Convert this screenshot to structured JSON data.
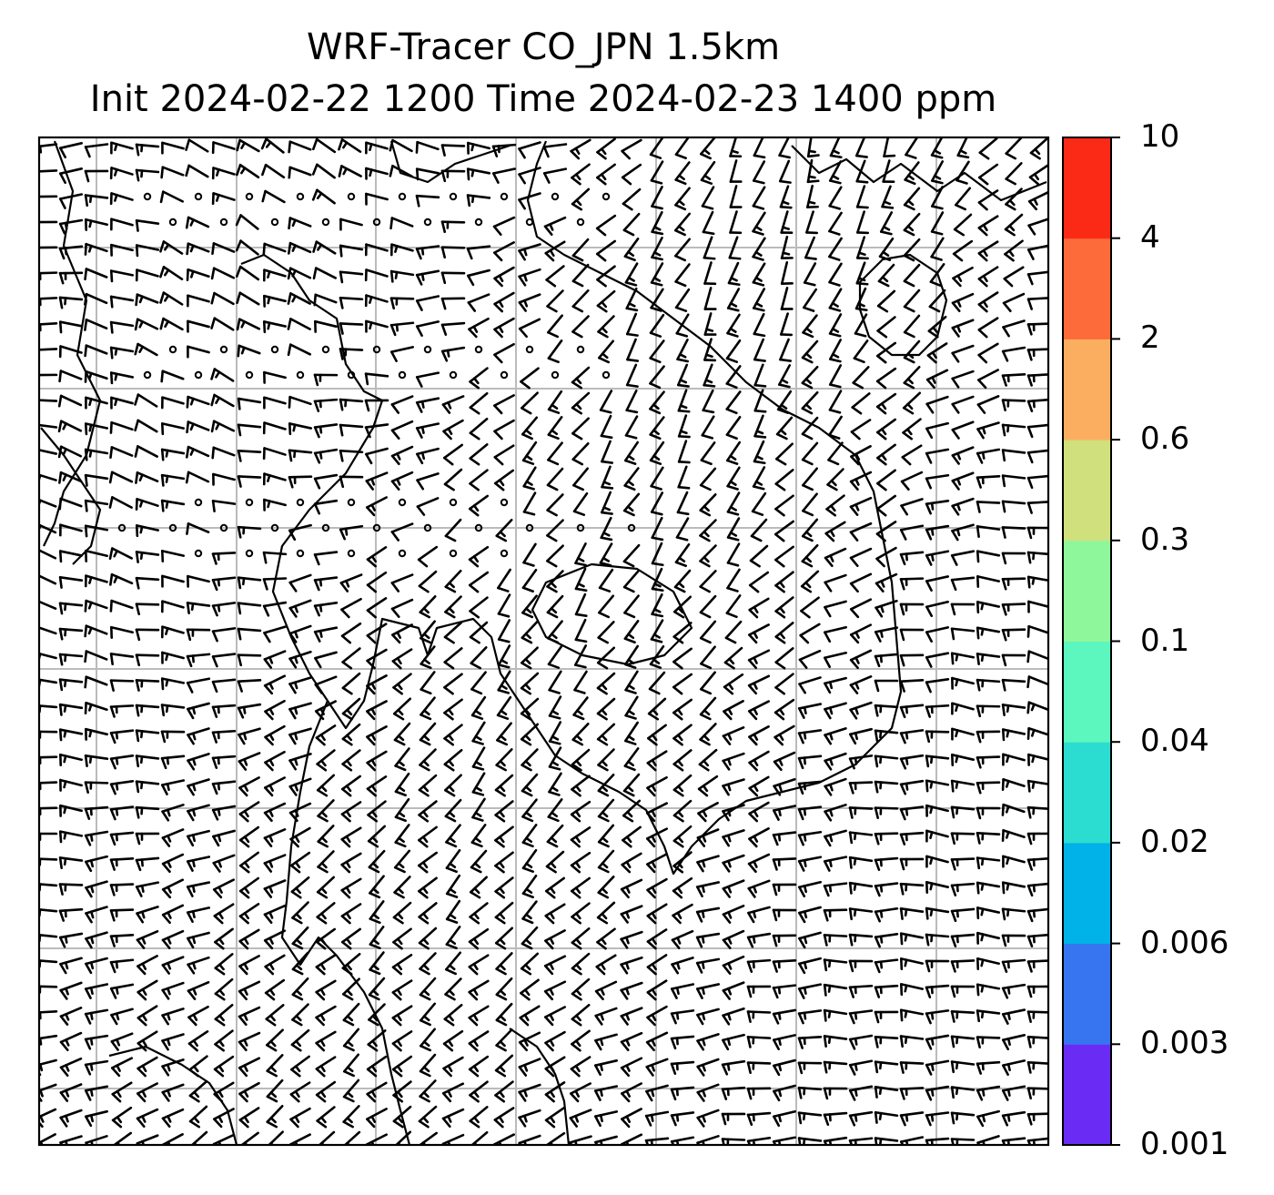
{
  "title": "WRF-Tracer CO_JPN 1.5km",
  "subtitle": "Init 2024-02-22 1200 Time 2024-02-23 1400 ppm",
  "colorbar": {
    "ticks": [
      "10",
      "4",
      "2",
      "0.6",
      "0.3",
      "0.1",
      "0.04",
      "0.02",
      "0.006",
      "0.003",
      "0.001"
    ],
    "colors": [
      "#6a2bf5",
      "#3775f0",
      "#00b2e8",
      "#2bddd0",
      "#5cf7be",
      "#8ff79b",
      "#cfe07d",
      "#fcae60",
      "#fd6b3a",
      "#fb2a16"
    ]
  },
  "map": {
    "type": "wind-barbs-over-coastlines",
    "grid": true,
    "colors": {
      "gridline": "#bbbbbb",
      "barb": "#000000",
      "coastline": "#000000"
    }
  }
}
